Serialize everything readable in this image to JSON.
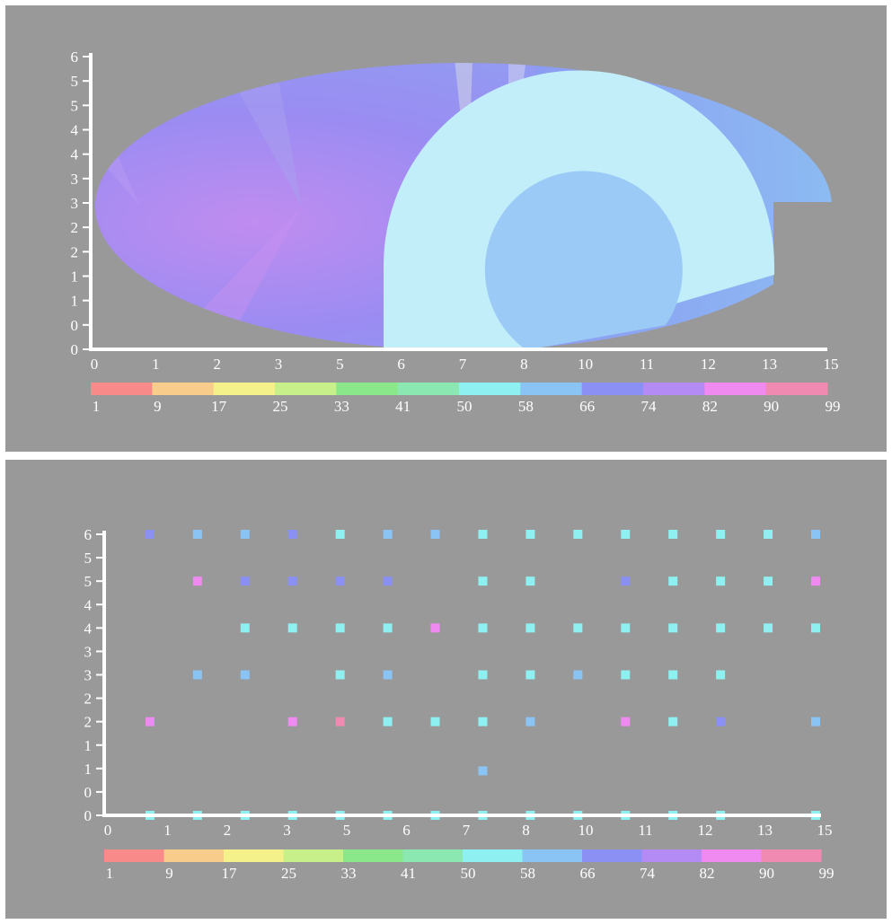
{
  "colors": {
    "background": "#999999",
    "axis": "#ffffff",
    "tick_label": "#ffffff",
    "colorbar": [
      "#f88a8a",
      "#f8cc8a",
      "#f4f08a",
      "#c8f08a",
      "#8ae88a",
      "#8ae8b0",
      "#8ef0f0",
      "#8ac4f4",
      "#8a90f4",
      "#b48af4",
      "#f08af0",
      "#f08ab0"
    ]
  },
  "chart_data": [
    {
      "type": "area",
      "x_ticks": [
        "0",
        "1",
        "2",
        "3",
        "5",
        "6",
        "7",
        "8",
        "10",
        "11",
        "12",
        "13",
        "15"
      ],
      "y_ticks": [
        "0",
        "0",
        "1",
        "1",
        "2",
        "2",
        "3",
        "3",
        "4",
        "4",
        "5",
        "5",
        "6"
      ],
      "xlim": [
        0,
        15
      ],
      "ylim": [
        0,
        6
      ],
      "colorbar_ticks": [
        "1",
        "9",
        "17",
        "25",
        "33",
        "41",
        "50",
        "58",
        "66",
        "74",
        "82",
        "90",
        "99"
      ],
      "colorbar_range": [
        1,
        99
      ],
      "grid": false,
      "legend": "colorbar below x-axis"
    },
    {
      "type": "scatter",
      "x_ticks": [
        "0",
        "1",
        "2",
        "3",
        "5",
        "6",
        "7",
        "8",
        "10",
        "11",
        "12",
        "13",
        "15"
      ],
      "y_ticks": [
        "0",
        "0",
        "1",
        "1",
        "2",
        "2",
        "3",
        "3",
        "4",
        "4",
        "5",
        "5",
        "6"
      ],
      "xlim": [
        0,
        15
      ],
      "ylim": [
        0,
        6
      ],
      "colorbar_ticks": [
        "1",
        "9",
        "17",
        "25",
        "33",
        "41",
        "50",
        "58",
        "66",
        "74",
        "82",
        "90",
        "99"
      ],
      "colorbar_range": [
        1,
        99
      ],
      "grid": false,
      "legend": "colorbar below x-axis",
      "points": [
        {
          "x": 1.0,
          "y": 6.0,
          "value": 68
        },
        {
          "x": 2.0,
          "y": 6.0,
          "value": 62
        },
        {
          "x": 3.0,
          "y": 6.0,
          "value": 62
        },
        {
          "x": 4.0,
          "y": 6.0,
          "value": 74
        },
        {
          "x": 5.0,
          "y": 6.0,
          "value": 54
        },
        {
          "x": 6.0,
          "y": 6.0,
          "value": 62
        },
        {
          "x": 7.0,
          "y": 6.0,
          "value": 62
        },
        {
          "x": 8.0,
          "y": 6.0,
          "value": 54
        },
        {
          "x": 9.0,
          "y": 6.0,
          "value": 54
        },
        {
          "x": 10.0,
          "y": 6.0,
          "value": 54
        },
        {
          "x": 11.0,
          "y": 6.0,
          "value": 54
        },
        {
          "x": 12.0,
          "y": 6.0,
          "value": 54
        },
        {
          "x": 13.0,
          "y": 6.0,
          "value": 54
        },
        {
          "x": 14.0,
          "y": 6.0,
          "value": 54
        },
        {
          "x": 15.0,
          "y": 6.0,
          "value": 62
        },
        {
          "x": 2.0,
          "y": 5.0,
          "value": 86
        },
        {
          "x": 3.0,
          "y": 5.0,
          "value": 72
        },
        {
          "x": 4.0,
          "y": 5.0,
          "value": 74
        },
        {
          "x": 5.0,
          "y": 5.0,
          "value": 74
        },
        {
          "x": 6.0,
          "y": 5.0,
          "value": 70
        },
        {
          "x": 8.0,
          "y": 5.0,
          "value": 54
        },
        {
          "x": 9.0,
          "y": 5.0,
          "value": 54
        },
        {
          "x": 11.0,
          "y": 5.0,
          "value": 74
        },
        {
          "x": 12.0,
          "y": 5.0,
          "value": 54
        },
        {
          "x": 13.0,
          "y": 5.0,
          "value": 54
        },
        {
          "x": 14.0,
          "y": 5.0,
          "value": 54
        },
        {
          "x": 15.0,
          "y": 5.0,
          "value": 88
        },
        {
          "x": 3.0,
          "y": 4.0,
          "value": 54
        },
        {
          "x": 4.0,
          "y": 4.0,
          "value": 54
        },
        {
          "x": 5.0,
          "y": 4.0,
          "value": 54
        },
        {
          "x": 6.0,
          "y": 4.0,
          "value": 54
        },
        {
          "x": 7.0,
          "y": 4.0,
          "value": 86
        },
        {
          "x": 8.0,
          "y": 4.0,
          "value": 54
        },
        {
          "x": 9.0,
          "y": 4.0,
          "value": 54
        },
        {
          "x": 10.0,
          "y": 4.0,
          "value": 54
        },
        {
          "x": 11.0,
          "y": 4.0,
          "value": 54
        },
        {
          "x": 12.0,
          "y": 4.0,
          "value": 54
        },
        {
          "x": 13.0,
          "y": 4.0,
          "value": 54
        },
        {
          "x": 14.0,
          "y": 4.0,
          "value": 54
        },
        {
          "x": 15.0,
          "y": 4.0,
          "value": 54
        },
        {
          "x": 2.0,
          "y": 3.0,
          "value": 62
        },
        {
          "x": 3.0,
          "y": 3.0,
          "value": 62
        },
        {
          "x": 5.0,
          "y": 3.0,
          "value": 54
        },
        {
          "x": 6.0,
          "y": 3.0,
          "value": 62
        },
        {
          "x": 8.0,
          "y": 3.0,
          "value": 54
        },
        {
          "x": 9.0,
          "y": 3.0,
          "value": 54
        },
        {
          "x": 10.0,
          "y": 3.0,
          "value": 62
        },
        {
          "x": 11.0,
          "y": 3.0,
          "value": 54
        },
        {
          "x": 12.0,
          "y": 3.0,
          "value": 54
        },
        {
          "x": 13.0,
          "y": 3.0,
          "value": 54
        },
        {
          "x": 1.0,
          "y": 2.0,
          "value": 86
        },
        {
          "x": 4.0,
          "y": 2.0,
          "value": 86
        },
        {
          "x": 5.0,
          "y": 2.0,
          "value": 95
        },
        {
          "x": 6.0,
          "y": 2.0,
          "value": 54
        },
        {
          "x": 7.0,
          "y": 2.0,
          "value": 54
        },
        {
          "x": 8.0,
          "y": 2.0,
          "value": 54
        },
        {
          "x": 9.0,
          "y": 2.0,
          "value": 62
        },
        {
          "x": 11.0,
          "y": 2.0,
          "value": 88
        },
        {
          "x": 12.0,
          "y": 2.0,
          "value": 54
        },
        {
          "x": 13.0,
          "y": 2.0,
          "value": 74
        },
        {
          "x": 15.0,
          "y": 2.0,
          "value": 62
        },
        {
          "x": 8.0,
          "y": 0.95,
          "value": 62
        },
        {
          "x": 1.0,
          "y": 0.0,
          "value": 54
        },
        {
          "x": 2.0,
          "y": 0.0,
          "value": 54
        },
        {
          "x": 3.0,
          "y": 0.0,
          "value": 54
        },
        {
          "x": 4.0,
          "y": 0.0,
          "value": 54
        },
        {
          "x": 5.0,
          "y": 0.0,
          "value": 54
        },
        {
          "x": 6.0,
          "y": 0.0,
          "value": 54
        },
        {
          "x": 7.0,
          "y": 0.0,
          "value": 54
        },
        {
          "x": 8.0,
          "y": 0.0,
          "value": 54
        },
        {
          "x": 9.0,
          "y": 0.0,
          "value": 54
        },
        {
          "x": 10.0,
          "y": 0.0,
          "value": 54
        },
        {
          "x": 11.0,
          "y": 0.0,
          "value": 54
        },
        {
          "x": 12.0,
          "y": 0.0,
          "value": 54
        },
        {
          "x": 13.0,
          "y": 0.0,
          "value": 54
        },
        {
          "x": 15.0,
          "y": 0.0,
          "value": 54
        }
      ]
    }
  ]
}
